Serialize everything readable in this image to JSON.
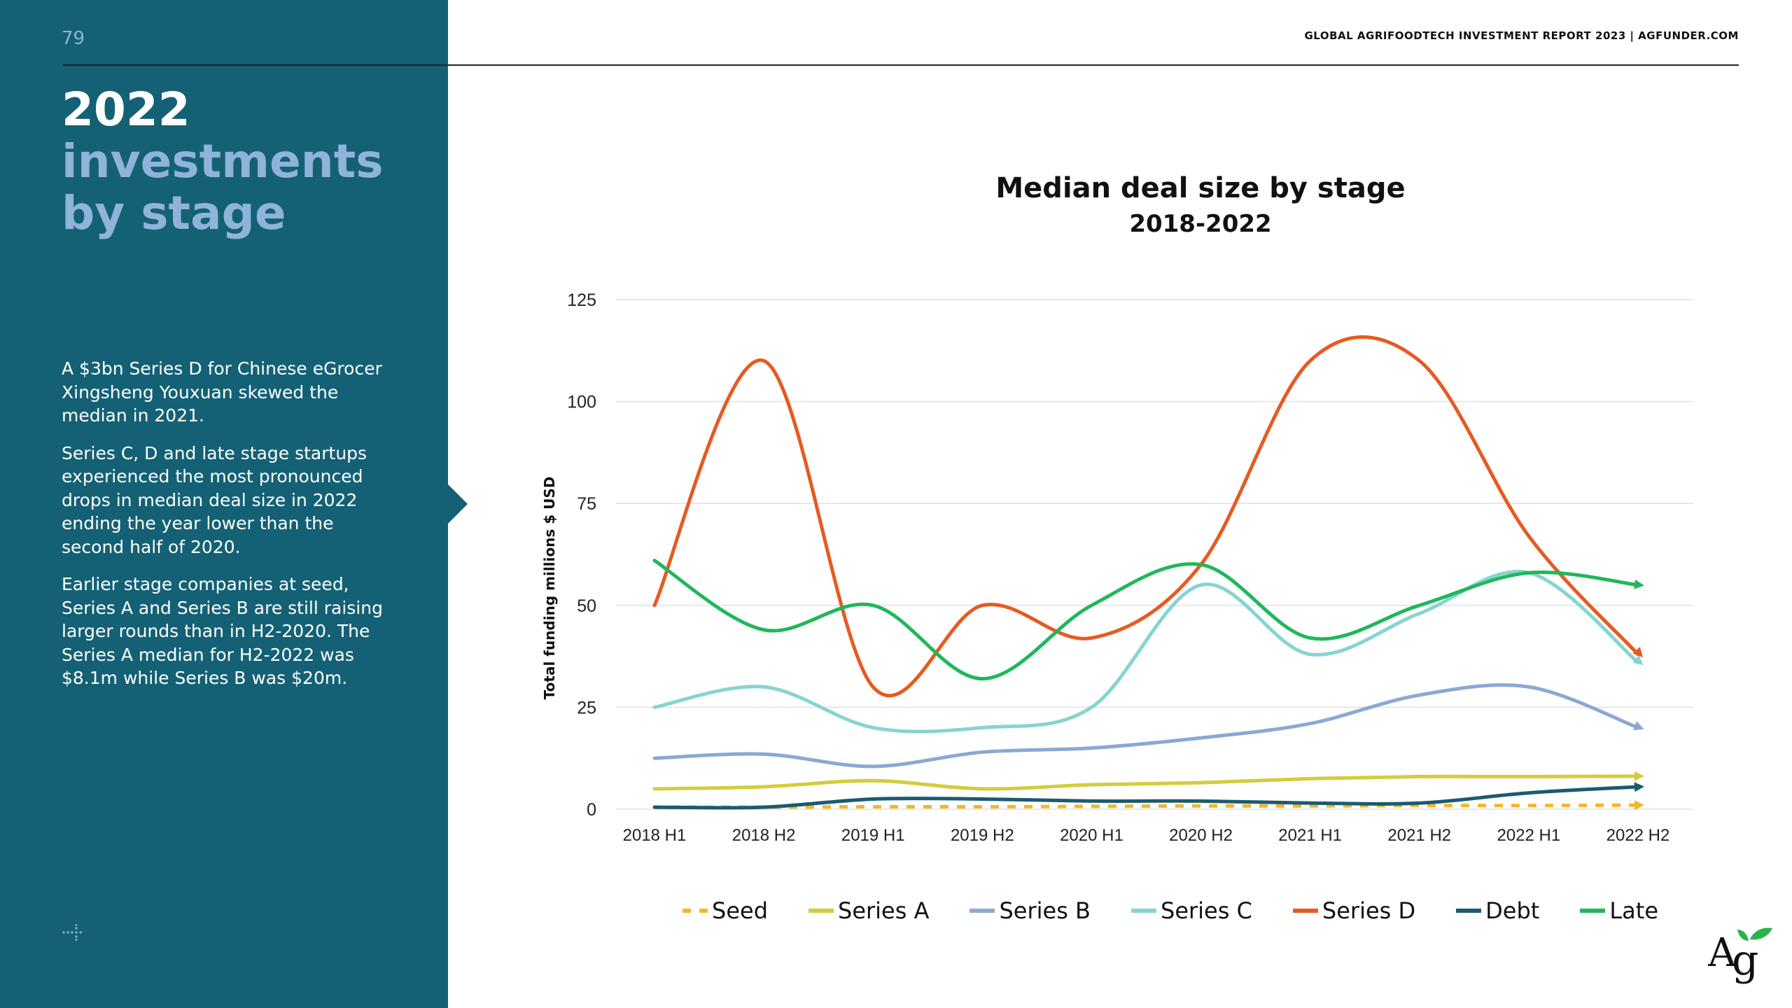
{
  "page": {
    "number": "79",
    "header": "GLOBAL AGRIFOODTECH INVESTMENT REPORT 2023 | AGFUNDER.COM"
  },
  "sidebar": {
    "title_year": "2022",
    "title_rest": "investments by stage",
    "paragraphs": [
      "A $3bn Series D for Chinese eGrocer Xingsheng Youxuan skewed the median in 2021.",
      "Series C, D and late stage startups experienced the most pronounced drops in median deal size in 2022 ending the year lower than the second half of 2020.",
      "Earlier stage companies at seed, Series A and Series B are still raising larger rounds than in H2-2020. The Series A median for H2-2022 was $8.1m while Series B was $20m."
    ]
  },
  "chart_data": {
    "type": "line",
    "title": "Median deal size by stage",
    "subtitle": "2018-2022",
    "ylabel": "Total funding millions $ USD",
    "xlabel": "",
    "ylim": [
      0,
      125
    ],
    "yticks": [
      0,
      25,
      50,
      75,
      100,
      125
    ],
    "categories": [
      "2018 H1",
      "2018 H2",
      "2019 H1",
      "2019 H2",
      "2020 H1",
      "2020 H2",
      "2021 H1",
      "2021 H2",
      "2022 H1",
      "2022 H2"
    ],
    "grid": true,
    "legend_position": "bottom",
    "series": [
      {
        "name": "Seed",
        "color": "#f2b82a",
        "dashed": true,
        "values": [
          0.5,
          0.5,
          0.6,
          0.6,
          0.7,
          0.8,
          0.8,
          0.9,
          0.9,
          1.0
        ]
      },
      {
        "name": "Series A",
        "color": "#d4cc3c",
        "dashed": false,
        "values": [
          5,
          5.5,
          7,
          5,
          6,
          6.5,
          7.5,
          8,
          8,
          8.1
        ]
      },
      {
        "name": "Series B",
        "color": "#8ba8d4",
        "dashed": false,
        "values": [
          12.5,
          13.5,
          10.5,
          14,
          15,
          17.5,
          21,
          28,
          30,
          20
        ]
      },
      {
        "name": "Series C",
        "color": "#86d4d2",
        "dashed": false,
        "values": [
          25,
          30,
          20,
          20,
          25,
          55,
          38,
          48,
          58,
          36
        ]
      },
      {
        "name": "Series D",
        "color": "#e65a22",
        "dashed": false,
        "values": [
          50,
          110,
          30,
          50,
          42,
          60,
          110,
          110,
          67,
          38
        ]
      },
      {
        "name": "Debt",
        "color": "#1b5b6e",
        "dashed": false,
        "values": [
          0.5,
          0.5,
          2.5,
          2.5,
          2,
          2,
          1.5,
          1.5,
          4,
          5.5
        ]
      },
      {
        "name": "Late",
        "color": "#1fb85a",
        "dashed": false,
        "values": [
          61,
          44,
          50,
          32,
          50,
          60,
          42,
          50,
          58,
          55
        ]
      }
    ]
  },
  "colors": {
    "sidebar_bg": "#146175",
    "sidebar_title_accent": "#8fb3d9",
    "logo_green": "#2ab34a"
  }
}
